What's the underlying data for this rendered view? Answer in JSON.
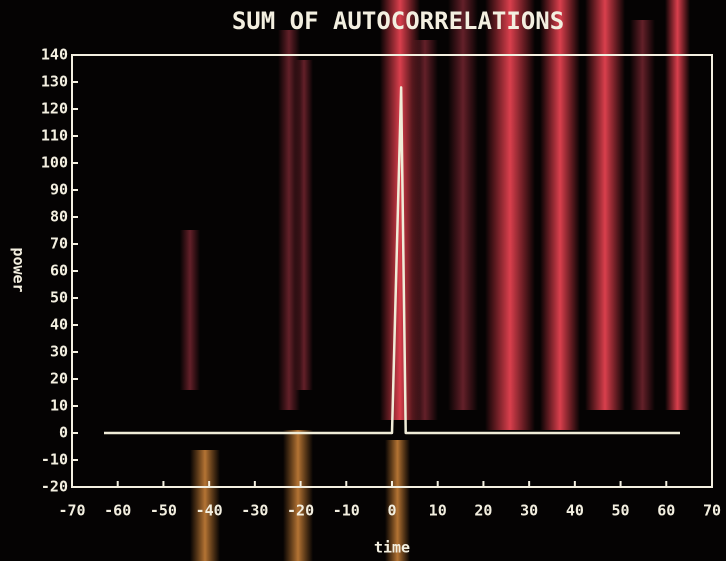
{
  "chart_data": {
    "type": "line",
    "title": "SUM OF AUTOCORRELATIONS",
    "x_label": "time",
    "y_label": "power",
    "xlim": [
      -70,
      70
    ],
    "xticks": [
      -70,
      -60,
      -50,
      -40,
      -30,
      -20,
      -10,
      0,
      10,
      20,
      30,
      40,
      50,
      60,
      70
    ],
    "ylim": [
      -20,
      140
    ],
    "yticks": [
      -20,
      -10,
      0,
      10,
      20,
      30,
      40,
      50,
      60,
      70,
      80,
      90,
      100,
      110,
      120,
      130,
      140
    ],
    "series": [
      {
        "color": "#f0ecd8",
        "x": [
          -63,
          0,
          2,
          3,
          63
        ],
        "values": [
          0,
          0,
          128,
          0,
          0
        ]
      }
    ]
  }
}
